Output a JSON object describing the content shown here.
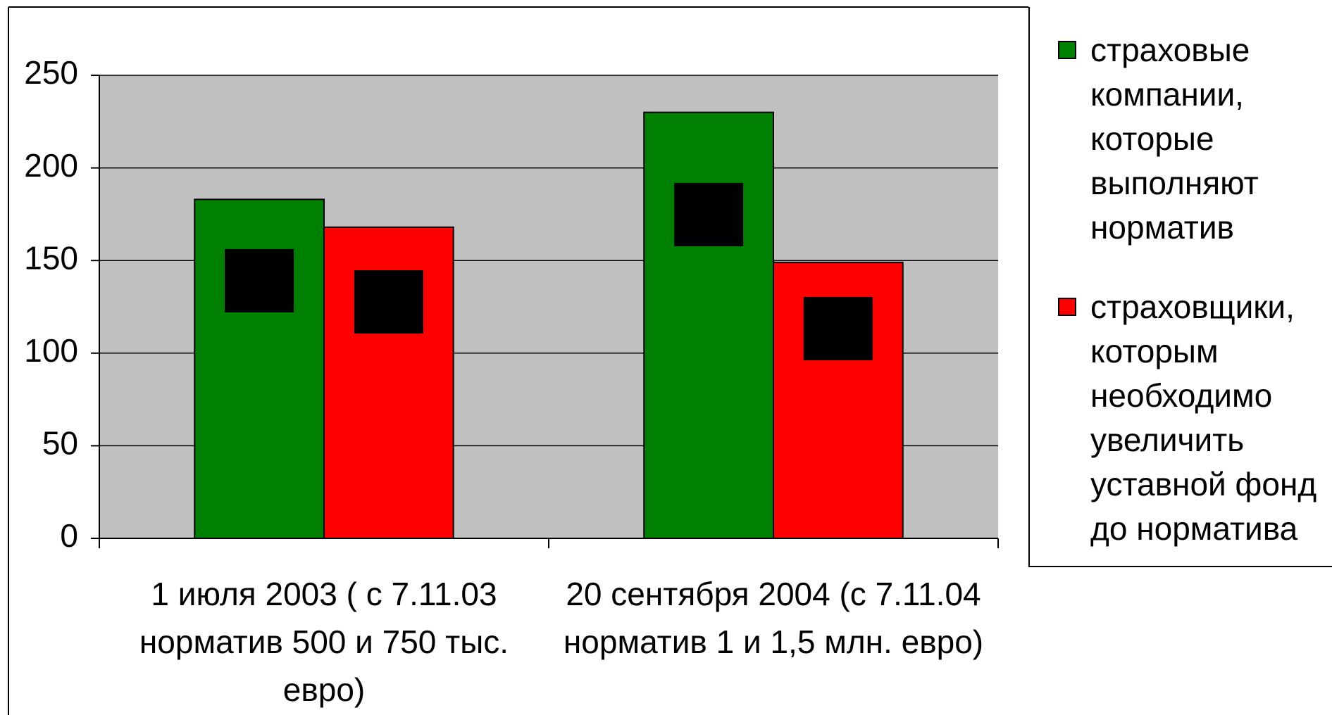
{
  "chart_data": {
    "type": "bar",
    "categories": [
      "1 июля 2003 ( с 7.11.03 норматив 500 и 750 тыс. евро)",
      "20 сентября 2004 (с 7.11.04 норматив 1 и 1,5 млн. евро)"
    ],
    "series": [
      {
        "name": "страховые компании, которые выполняют норматив",
        "color": "#008000",
        "values": [
          183,
          230
        ]
      },
      {
        "name": "страховщики, которым необходимо увеличить уставной фонд до норматива",
        "color": "#ff0000",
        "values": [
          168,
          149
        ]
      }
    ],
    "ylim": [
      0,
      250
    ],
    "yticks": [
      0,
      50,
      100,
      150,
      200,
      250
    ],
    "grid": true,
    "legend": "right"
  }
}
